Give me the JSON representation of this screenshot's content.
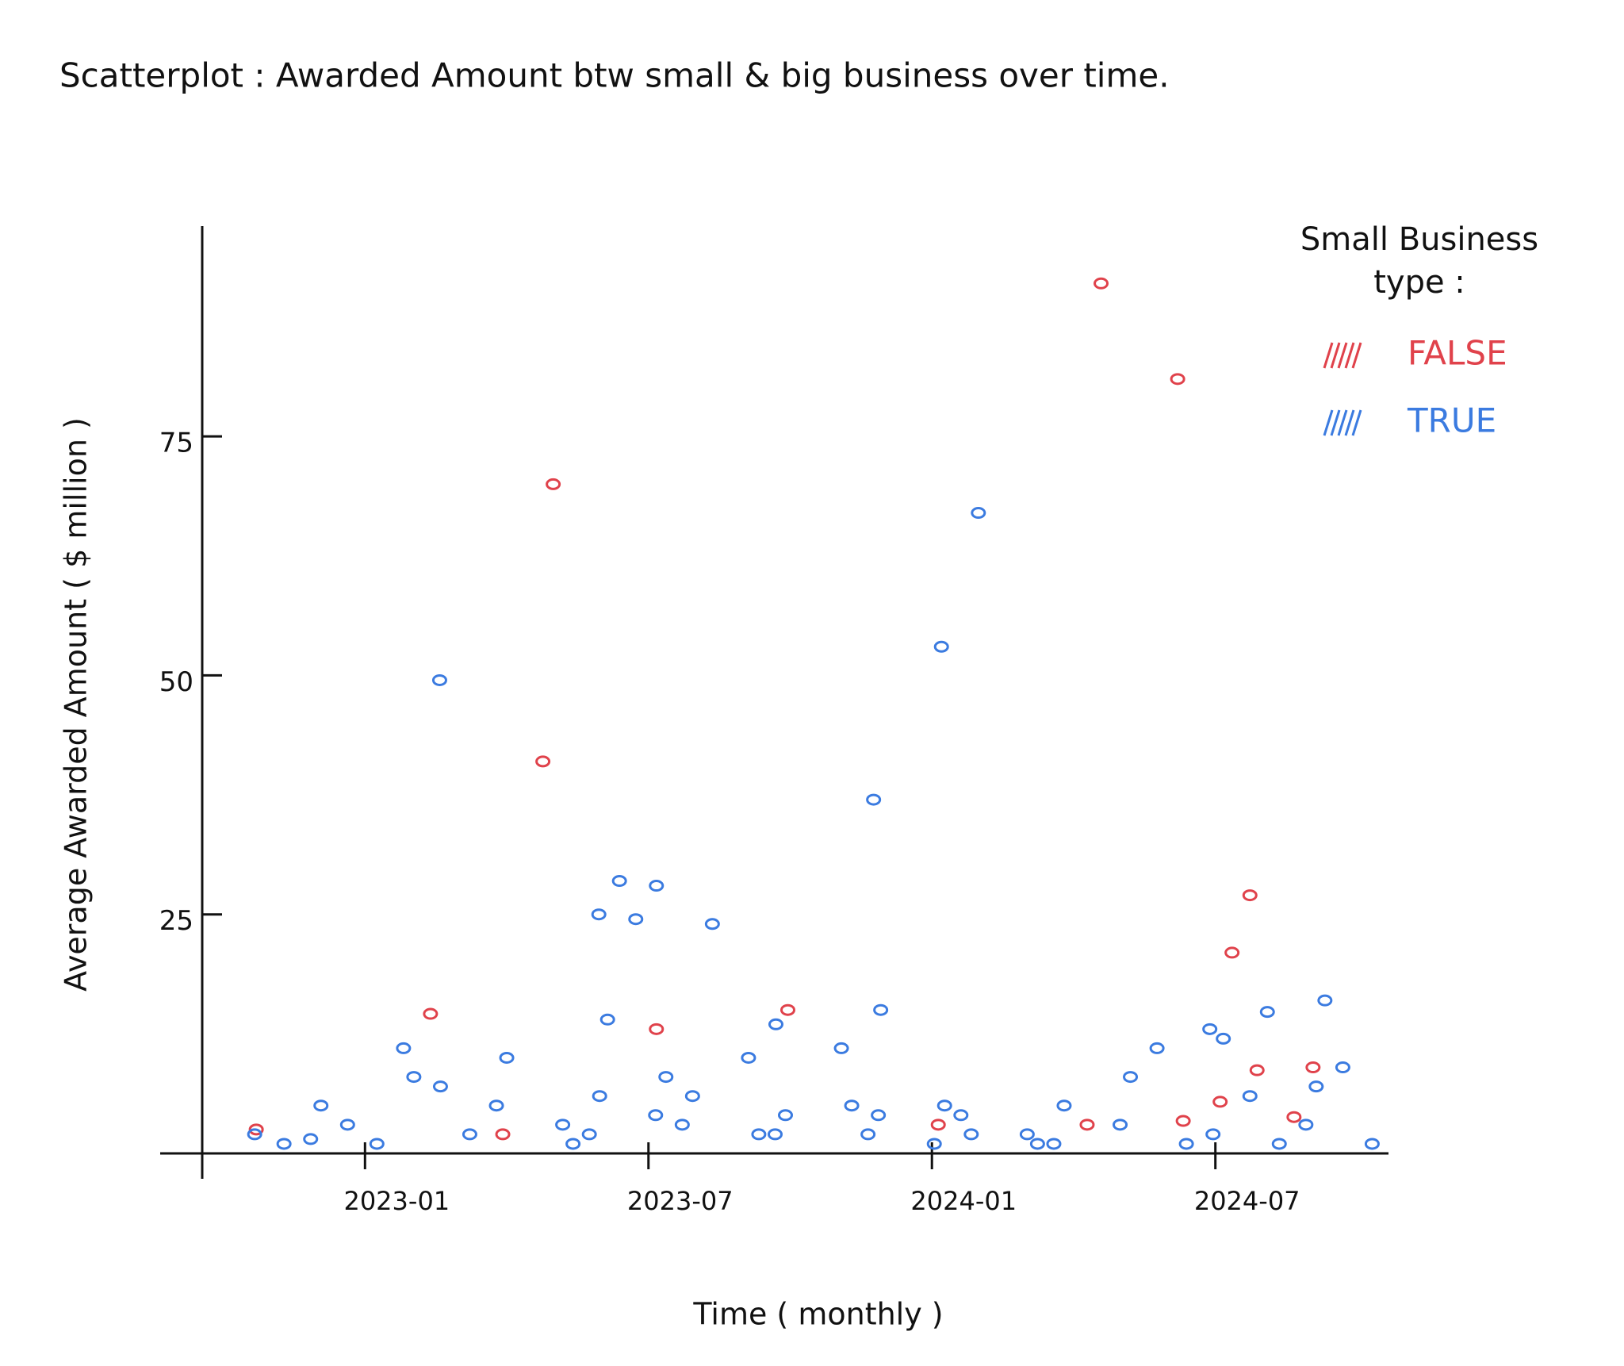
{
  "chart_data": {
    "type": "scatter",
    "title": "Scatterplot : Awarded Amount btw small & big business over time.",
    "x_label": "Time ( monthly )",
    "y_label": "Average Awarded Amount ( $ million )",
    "xlim": [
      "2022-09",
      "2024-11"
    ],
    "xticks": [
      "2023-01",
      "2023-07",
      "2024-01",
      "2024-07"
    ],
    "ylim": [
      0,
      97
    ],
    "yticks": [
      25,
      50,
      75
    ],
    "legend": {
      "title": "Small Business type :",
      "position": "upper right"
    },
    "series": [
      {
        "name": "FALSE",
        "color": "#e0424b",
        "x": [
          "2024-05",
          "2024-06",
          "2023-05",
          "2023-05",
          "2023-02",
          "2023-07",
          "2023-10",
          "2024-08",
          "2024-07",
          "2024-01",
          "2023-04",
          "2022-11",
          "2024-06",
          "2024-07",
          "2024-08",
          "2024-09",
          "2024-04",
          "2024-09"
        ],
        "values": [
          91,
          81,
          70,
          41,
          14.6,
          13,
          15,
          27,
          21,
          3,
          2,
          2.5,
          3.4,
          5.4,
          8.7,
          3.8,
          3,
          9
        ]
      },
      {
        "name": "TRUE",
        "color": "#3b7be0",
        "x": [
          "2023-03",
          "2024-01",
          "2024-02",
          "2023-12",
          "2023-06",
          "2023-07",
          "2023-06",
          "2023-07",
          "2023-08",
          "2023-06",
          "2023-12",
          "2023-10",
          "2024-09",
          "2024-08",
          "2024-07",
          "2022-11",
          "2022-11",
          "2022-12",
          "2022-12",
          "2023-01",
          "2023-01",
          "2023-02",
          "2023-02",
          "2023-03",
          "2023-03",
          "2023-04",
          "2023-04",
          "2023-05",
          "2023-05",
          "2023-06",
          "2023-06",
          "2023-07",
          "2023-07",
          "2023-08",
          "2023-08",
          "2023-09",
          "2023-09",
          "2023-10",
          "2023-10",
          "2023-11",
          "2023-11",
          "2023-12",
          "2023-12",
          "2024-01",
          "2024-01",
          "2024-02",
          "2024-02",
          "2024-03",
          "2024-03",
          "2024-04",
          "2024-04",
          "2024-05",
          "2024-05",
          "2024-06",
          "2024-06",
          "2024-07",
          "2024-07",
          "2024-08",
          "2024-08",
          "2024-09",
          "2024-09",
          "2024-10",
          "2024-10"
        ],
        "values": [
          49.5,
          53,
          67,
          37,
          28.5,
          28,
          25,
          24.5,
          24,
          14,
          15,
          13.5,
          16,
          14.8,
          13,
          2,
          1,
          5,
          1.5,
          3,
          1,
          8,
          11,
          7,
          2,
          10,
          5,
          1,
          3,
          6,
          2,
          8,
          4,
          6,
          3,
          2,
          10,
          4,
          2,
          5,
          11,
          4,
          2,
          5,
          1,
          2,
          4,
          1,
          2,
          5,
          1,
          8,
          3,
          11,
          1,
          12,
          2,
          6,
          1,
          7,
          3,
          9,
          1
        ]
      }
    ]
  }
}
